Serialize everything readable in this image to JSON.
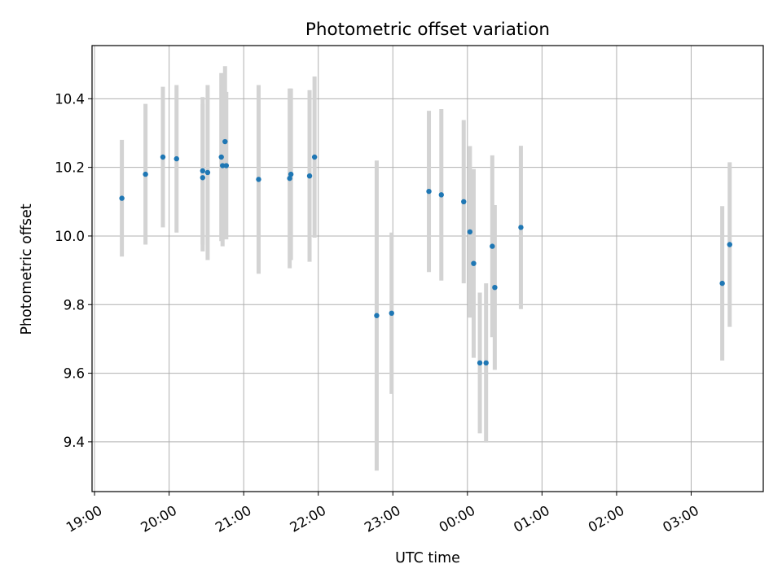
{
  "chart_data": {
    "type": "scatter",
    "title": "Photometric offset variation",
    "xlabel": "UTC time",
    "ylabel": "Photometric offset",
    "x_axis_type": "time",
    "xlim": [
      "18:58",
      "03:58"
    ],
    "ylim": [
      9.255,
      10.555
    ],
    "x_ticks": [
      "19:00",
      "20:00",
      "21:00",
      "22:00",
      "23:00",
      "00:00",
      "01:00",
      "02:00",
      "03:00"
    ],
    "y_ticks": [
      "9.4",
      "9.6",
      "9.8",
      "10.0",
      "10.2",
      "10.4"
    ],
    "grid": true,
    "legend": "none",
    "marker_color": "#1f77b4",
    "errorbar_color": "#d3d3d3",
    "points": [
      {
        "x": "19:22",
        "y": 10.11,
        "err": 0.17
      },
      {
        "x": "19:41",
        "y": 10.18,
        "err": 0.205
      },
      {
        "x": "19:55",
        "y": 10.23,
        "err": 0.205
      },
      {
        "x": "20:06",
        "y": 10.225,
        "err": 0.215
      },
      {
        "x": "20:27",
        "y": 10.19,
        "err": 0.215
      },
      {
        "x": "20:27",
        "y": 10.17,
        "err": 0.215
      },
      {
        "x": "20:31",
        "y": 10.185,
        "err": 0.255
      },
      {
        "x": "20:42",
        "y": 10.23,
        "err": 0.245
      },
      {
        "x": "20:43",
        "y": 10.205,
        "err": 0.235
      },
      {
        "x": "20:45",
        "y": 10.275,
        "err": 0.22
      },
      {
        "x": "20:46",
        "y": 10.205,
        "err": 0.215
      },
      {
        "x": "21:12",
        "y": 10.165,
        "err": 0.275
      },
      {
        "x": "21:37",
        "y": 10.168,
        "err": 0.262
      },
      {
        "x": "21:38",
        "y": 10.18,
        "err": 0.25
      },
      {
        "x": "21:53",
        "y": 10.175,
        "err": 0.25
      },
      {
        "x": "21:57",
        "y": 10.23,
        "err": 0.235
      },
      {
        "x": "22:47",
        "y": 9.768,
        "err": 0.452
      },
      {
        "x": "22:59",
        "y": 9.775,
        "err": 0.235
      },
      {
        "x": "23:29",
        "y": 10.13,
        "err": 0.235
      },
      {
        "x": "23:39",
        "y": 10.12,
        "err": 0.25
      },
      {
        "x": "23:57",
        "y": 10.1,
        "err": 0.238
      },
      {
        "x": "00:02",
        "y": 10.012,
        "err": 0.25
      },
      {
        "x": "00:05",
        "y": 9.92,
        "err": 0.275
      },
      {
        "x": "00:10",
        "y": 9.63,
        "err": 0.205
      },
      {
        "x": "00:15",
        "y": 9.63,
        "err": 0.232
      },
      {
        "x": "00:20",
        "y": 9.97,
        "err": 0.265
      },
      {
        "x": "00:22",
        "y": 9.85,
        "err": 0.24
      },
      {
        "x": "00:43",
        "y": 10.025,
        "err": 0.238
      },
      {
        "x": "03:25",
        "y": 9.862,
        "err": 0.225
      },
      {
        "x": "03:31",
        "y": 9.975,
        "err": 0.24
      }
    ]
  }
}
